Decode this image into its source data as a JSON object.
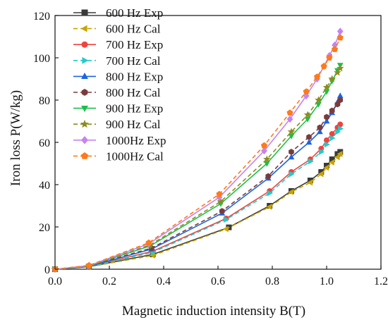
{
  "chart_data": {
    "type": "line",
    "title": "",
    "xlabel": "Magnetic induction intensity B(T)",
    "ylabel": "Iron loss P(W/kg)",
    "xlim": [
      0.0,
      1.2
    ],
    "ylim": [
      0,
      120
    ],
    "xticks": [
      "0.0",
      "0.2",
      "0.4",
      "0.6",
      "0.8",
      "1.0",
      "1.2"
    ],
    "yticks": [
      "0",
      "20",
      "40",
      "60",
      "80",
      "100",
      "120"
    ],
    "grid": false,
    "legend_position": "top-left",
    "series": [
      {
        "name": "600 Hz  Exp",
        "color": "#3a3a3a",
        "dash": "solid",
        "marker": "square",
        "x": [
          0.0,
          0.125,
          0.36,
          0.64,
          0.79,
          0.87,
          0.94,
          0.98,
          1.0,
          1.02,
          1.04,
          1.05
        ],
        "y": [
          0,
          1.2,
          7,
          19.8,
          30,
          37,
          42,
          46,
          49,
          52,
          54.5,
          55.5
        ]
      },
      {
        "name": "600 Hz  Cal",
        "color": "#c8a400",
        "dash": "dashed",
        "marker": "triangle-left",
        "x": [
          0.0,
          0.125,
          0.36,
          0.63,
          0.79,
          0.87,
          0.94,
          0.98,
          1.0,
          1.02,
          1.04,
          1.05
        ],
        "y": [
          0,
          1.1,
          6.5,
          19,
          29.5,
          36.5,
          41,
          45,
          48,
          50.5,
          53,
          54.5
        ]
      },
      {
        "name": "700 Hz  Exp",
        "color": "#f0433e",
        "dash": "solid",
        "marker": "circle",
        "x": [
          0.0,
          0.125,
          0.36,
          0.63,
          0.79,
          0.87,
          0.94,
          0.98,
          1.0,
          1.02,
          1.04,
          1.05
        ],
        "y": [
          0,
          1.3,
          8.5,
          24,
          37,
          46,
          52,
          57,
          61,
          64,
          67,
          68.5
        ]
      },
      {
        "name": "700 Hz  Cal",
        "color": "#22cbcb",
        "dash": "dashed",
        "marker": "triangle-right",
        "x": [
          0.0,
          0.125,
          0.36,
          0.63,
          0.79,
          0.87,
          0.94,
          0.98,
          1.0,
          1.02,
          1.04,
          1.05
        ],
        "y": [
          0,
          1.2,
          8,
          23.5,
          36,
          45,
          51,
          55.5,
          59,
          62,
          65,
          66.5
        ]
      },
      {
        "name": "800 Hz  Exp",
        "color": "#1c64e0",
        "dash": "solid",
        "marker": "triangle-up",
        "x": [
          0.0,
          0.125,
          0.355,
          0.615,
          0.785,
          0.87,
          0.935,
          0.975,
          1.0,
          1.02,
          1.04,
          1.05
        ],
        "y": [
          0,
          1.4,
          9.5,
          26.5,
          43,
          53,
          60,
          65,
          70,
          74,
          79,
          82
        ]
      },
      {
        "name": "800 Hz  Cal",
        "color": "#7a3b3b",
        "dash": "dashed",
        "marker": "hexagon",
        "x": [
          0.0,
          0.125,
          0.355,
          0.615,
          0.785,
          0.87,
          0.935,
          0.975,
          1.0,
          1.02,
          1.04,
          1.05
        ],
        "y": [
          0,
          1.5,
          10,
          27.5,
          44,
          55.5,
          62.5,
          67,
          72,
          75,
          78,
          80
        ]
      },
      {
        "name": "900 Hz  Exp",
        "color": "#1cbf4a",
        "dash": "solid",
        "marker": "triangle-down",
        "x": [
          0.0,
          0.125,
          0.35,
          0.61,
          0.78,
          0.87,
          0.93,
          0.97,
          1.0,
          1.02,
          1.04,
          1.05
        ],
        "y": [
          0,
          1.6,
          11,
          31,
          50,
          63,
          71,
          78,
          84,
          89,
          94,
          96.5
        ]
      },
      {
        "name": "900 Hz  Cal",
        "color": "#8c8c1e",
        "dash": "dashed",
        "marker": "star",
        "x": [
          0.0,
          0.125,
          0.35,
          0.61,
          0.78,
          0.87,
          0.93,
          0.97,
          1.0,
          1.02,
          1.04,
          1.05
        ],
        "y": [
          0,
          1.5,
          11.5,
          32,
          52,
          65,
          73,
          80,
          86,
          90,
          93,
          95
        ]
      },
      {
        "name": "1000Hz  Exp",
        "color": "#c583f2",
        "dash": "solid",
        "marker": "diamond",
        "x": [
          0.0,
          0.125,
          0.345,
          0.605,
          0.77,
          0.865,
          0.925,
          0.965,
          0.99,
          1.01,
          1.03,
          1.05
        ],
        "y": [
          0,
          1.7,
          12,
          34,
          56,
          71,
          82,
          90,
          96,
          101,
          106,
          112.5
        ]
      },
      {
        "name": "1000Hz  Cal",
        "color": "#ff7a1a",
        "dash": "dashed",
        "marker": "pentagon",
        "x": [
          0.0,
          0.125,
          0.345,
          0.605,
          0.77,
          0.865,
          0.925,
          0.965,
          0.99,
          1.01,
          1.03,
          1.05
        ],
        "y": [
          0,
          1.8,
          12.5,
          35.5,
          58.5,
          74,
          84,
          91,
          96,
          100,
          104,
          109.5
        ]
      }
    ]
  }
}
